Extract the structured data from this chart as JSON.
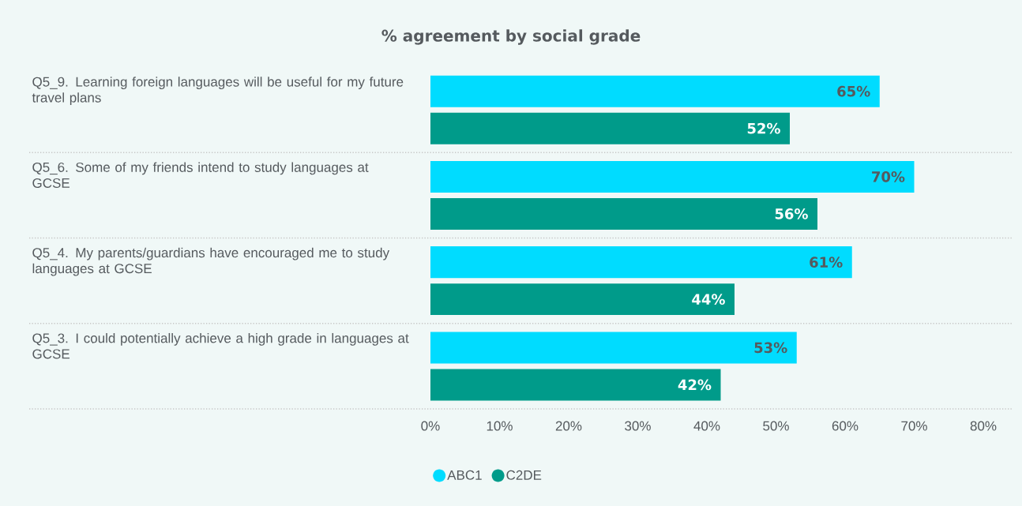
{
  "chart_data": {
    "type": "bar",
    "orientation": "horizontal",
    "title": "% agreement by social grade",
    "categories": [
      "Q5_9. Learning foreign languages will be useful for my future travel plans",
      "Q5_6. Some of my friends intend to study languages at GCSE",
      "Q5_4. My parents/guardians have encouraged me to study languages at GCSE",
      "Q5_3. I could potentially achieve a high grade in languages at GCSE"
    ],
    "series": [
      {
        "name": "ABC1",
        "color": "#00dcff",
        "values": [
          65,
          70,
          61,
          53
        ],
        "value_labels": [
          "65%",
          "70%",
          "61%",
          "53%"
        ]
      },
      {
        "name": "C2DE",
        "color": "#009b8a",
        "values": [
          52,
          56,
          44,
          42
        ],
        "value_labels": [
          "52%",
          "56%",
          "44%",
          "42%"
        ]
      }
    ],
    "xlim": [
      0,
      80
    ],
    "xticks": [
      {
        "value": 0,
        "label": "0%"
      },
      {
        "value": 10,
        "label": "10%"
      },
      {
        "value": 20,
        "label": "20%"
      },
      {
        "value": 30,
        "label": "30%"
      },
      {
        "value": 40,
        "label": "40%"
      },
      {
        "value": 50,
        "label": "50%"
      },
      {
        "value": 60,
        "label": "60%"
      },
      {
        "value": 70,
        "label": "70%"
      },
      {
        "value": 80,
        "label": "80%"
      }
    ],
    "legend": "bottom left",
    "grid": false
  }
}
